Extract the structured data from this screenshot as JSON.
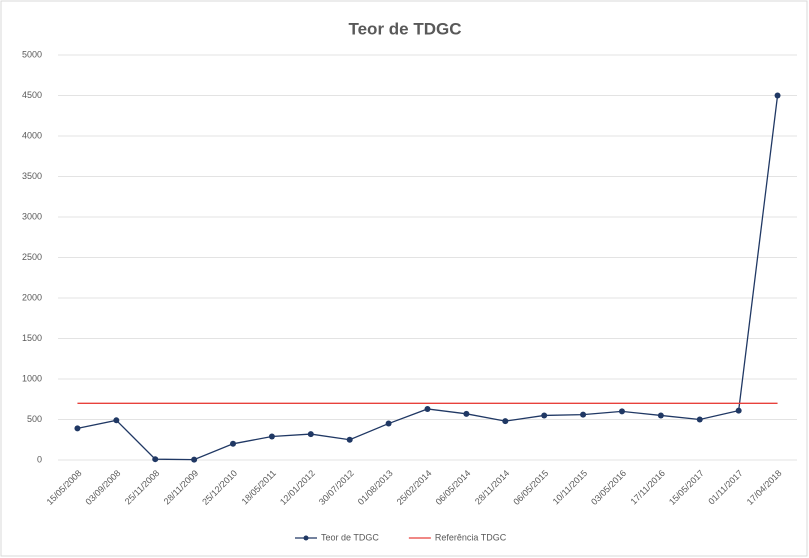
{
  "chart_data": {
    "type": "line",
    "title": "Teor de TDGC",
    "categories": [
      "15/05/2008",
      "03/09/2008",
      "25/11/2008",
      "28/11/2009",
      "25/12/2010",
      "18/05/2011",
      "12/01/2012",
      "30/07/2012",
      "01/08/2013",
      "25/02/2014",
      "06/05/2014",
      "28/11/2014",
      "06/05/2015",
      "10/11/2015",
      "03/05/2016",
      "17/11/2016",
      "15/05/2017",
      "01/11/2017",
      "17/04/2018"
    ],
    "series": [
      {
        "name": "Teor de TDGC",
        "color": "#203864",
        "marker": true,
        "values": [
          390,
          490,
          10,
          5,
          200,
          290,
          320,
          250,
          450,
          630,
          570,
          480,
          550,
          560,
          600,
          550,
          500,
          610,
          4500
        ]
      },
      {
        "name": "Referência TDGC",
        "color": "#e8413c",
        "marker": false,
        "values": [
          700,
          700,
          700,
          700,
          700,
          700,
          700,
          700,
          700,
          700,
          700,
          700,
          700,
          700,
          700,
          700,
          700,
          700,
          700
        ]
      }
    ],
    "ylim": [
      0,
      5000
    ],
    "yticks": [
      0,
      500,
      1000,
      1500,
      2000,
      2500,
      3000,
      3500,
      4000,
      4500,
      5000
    ],
    "grid": true,
    "legend": "bottom"
  }
}
